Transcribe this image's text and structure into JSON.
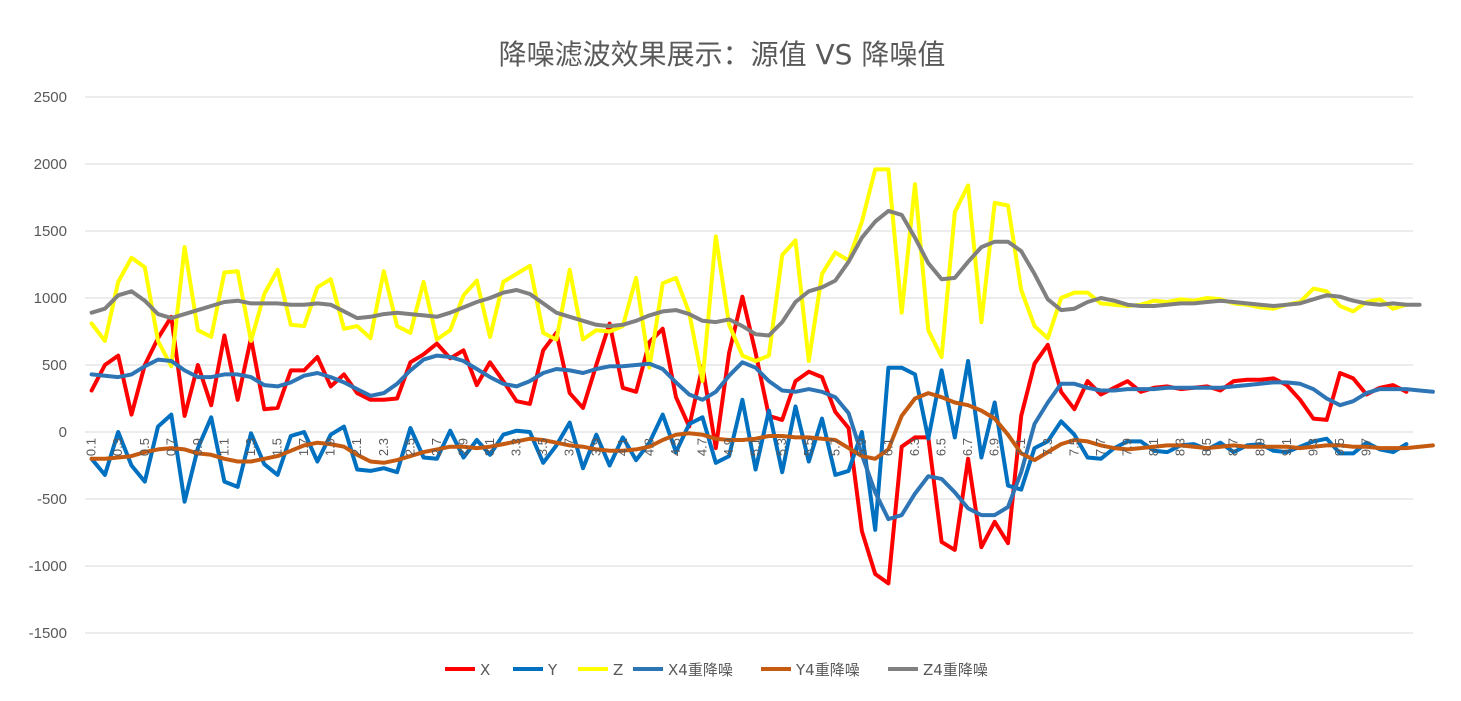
{
  "chart_data": {
    "type": "line",
    "title": "降噪滤波效果展示：源值 VS 降噪值",
    "xlabel": "",
    "ylabel": "",
    "ylim": [
      -1500,
      2500
    ],
    "yticks": [
      2500,
      2000,
      1500,
      1000,
      500,
      0,
      -500,
      -1000,
      -1500
    ],
    "x_start": 0.1,
    "x_step": 0.1,
    "x_tick_labels": [
      "0.1",
      "0.3",
      "0.5",
      "0.7",
      "0.9",
      "1.1",
      "1.3",
      "1.5",
      "1.7",
      "1.9",
      "2.1",
      "2.3",
      "2.5",
      "2.7",
      "2.9",
      "3.1",
      "3.3",
      "3.5",
      "3.7",
      "3.9",
      "4.1",
      "4.3",
      "4.5",
      "4.7",
      "4.9",
      "5.1",
      "5.3",
      "5.5",
      "5.7",
      "5.9",
      "6.1",
      "6.3",
      "6.5",
      "6.7",
      "6.9",
      "7.1",
      "7.3",
      "7.5",
      "7.7",
      "7.9",
      "8.1",
      "8.3",
      "8.5",
      "8.7",
      "8.9",
      "9.1",
      "9.3",
      "9.5",
      "9.7"
    ],
    "grid": true,
    "legend_position": "bottom",
    "series": [
      {
        "name": "X",
        "color": "#ff0000",
        "values": [
          310,
          500,
          570,
          130,
          500,
          700,
          860,
          120,
          500,
          200,
          720,
          240,
          700,
          170,
          180,
          460,
          460,
          560,
          340,
          430,
          290,
          240,
          240,
          250,
          520,
          580,
          660,
          550,
          610,
          350,
          520,
          380,
          230,
          210,
          610,
          740,
          290,
          180,
          500,
          810,
          330,
          300,
          670,
          770,
          260,
          40,
          490,
          -120,
          590,
          1010,
          590,
          120,
          90,
          380,
          450,
          410,
          150,
          30,
          -740,
          -1060,
          -1130,
          -110,
          -40,
          -40,
          -820,
          -880,
          -200,
          -860,
          -670,
          -830,
          120,
          510,
          650,
          300,
          170,
          380,
          280,
          330,
          380,
          300,
          330,
          340,
          320,
          330,
          340,
          310,
          380,
          390,
          390,
          400,
          350,
          240,
          100,
          90,
          440,
          400,
          280,
          330,
          350,
          300
        ]
      },
      {
        "name": "Y",
        "color": "#0070c0",
        "values": [
          -200,
          -320,
          0,
          -250,
          -370,
          40,
          130,
          -520,
          -120,
          110,
          -370,
          -410,
          -10,
          -240,
          -320,
          -30,
          0,
          -220,
          -20,
          40,
          -280,
          -290,
          -270,
          -300,
          30,
          -190,
          -200,
          10,
          -190,
          -60,
          -170,
          -20,
          10,
          0,
          -230,
          -100,
          70,
          -270,
          -20,
          -250,
          -40,
          -210,
          -80,
          130,
          -150,
          60,
          110,
          -230,
          -180,
          240,
          -280,
          160,
          -300,
          190,
          -220,
          100,
          -320,
          -290,
          0,
          -730,
          480,
          480,
          430,
          -50,
          460,
          -40,
          530,
          -190,
          220,
          -400,
          -430,
          -120,
          -70,
          80,
          -20,
          -190,
          -200,
          -120,
          -70,
          -70,
          -140,
          -150,
          -100,
          -90,
          -130,
          -80,
          -150,
          -100,
          -90,
          -140,
          -150,
          -110,
          -70,
          -50,
          -160,
          -160,
          -80,
          -130,
          -150,
          -90
        ]
      },
      {
        "name": "Z",
        "color": "#ffff00",
        "values": [
          810,
          680,
          1120,
          1300,
          1230,
          680,
          490,
          1380,
          760,
          710,
          1190,
          1200,
          680,
          1030,
          1210,
          800,
          790,
          1080,
          1140,
          770,
          790,
          700,
          1200,
          790,
          740,
          1120,
          690,
          760,
          1020,
          1130,
          710,
          1120,
          1180,
          1240,
          740,
          690,
          1210,
          690,
          760,
          750,
          790,
          1150,
          480,
          1110,
          1150,
          890,
          380,
          1460,
          800,
          570,
          530,
          570,
          1320,
          1430,
          530,
          1180,
          1340,
          1280,
          1570,
          1960,
          1960,
          890,
          1850,
          760,
          560,
          1640,
          1840,
          820,
          1710,
          1690,
          1060,
          790,
          700,
          1000,
          1040,
          1040,
          960,
          950,
          940,
          950,
          980,
          970,
          990,
          980,
          1000,
          990,
          960,
          950,
          930,
          920,
          950,
          970,
          1070,
          1050,
          940,
          900,
          970,
          990,
          920,
          950
        ]
      },
      {
        "name": "X4重降噪",
        "color": "#2e75b6",
        "values": [
          430,
          420,
          410,
          430,
          490,
          540,
          530,
          460,
          410,
          410,
          430,
          430,
          410,
          350,
          340,
          370,
          420,
          440,
          410,
          370,
          320,
          270,
          290,
          360,
          460,
          540,
          570,
          560,
          530,
          470,
          410,
          360,
          340,
          380,
          440,
          470,
          460,
          440,
          470,
          490,
          490,
          500,
          510,
          470,
          370,
          280,
          240,
          300,
          420,
          520,
          480,
          380,
          310,
          300,
          320,
          300,
          260,
          140,
          -170,
          -450,
          -650,
          -620,
          -460,
          -330,
          -350,
          -450,
          -570,
          -620,
          -620,
          -560,
          -300,
          60,
          220,
          360,
          360,
          330,
          310,
          310,
          320,
          320,
          320,
          330,
          330,
          330,
          330,
          330,
          340,
          350,
          360,
          370,
          370,
          360,
          320,
          250,
          200,
          230,
          290,
          320,
          320,
          320,
          310,
          300
        ]
      },
      {
        "name": "Y4重降噪",
        "color": "#c55a11",
        "values": [
          -200,
          -200,
          -190,
          -180,
          -150,
          -130,
          -120,
          -130,
          -160,
          -170,
          -200,
          -220,
          -220,
          -200,
          -180,
          -140,
          -100,
          -80,
          -90,
          -110,
          -170,
          -220,
          -230,
          -210,
          -180,
          -150,
          -130,
          -110,
          -110,
          -120,
          -110,
          -90,
          -70,
          -50,
          -60,
          -80,
          -100,
          -110,
          -130,
          -140,
          -140,
          -130,
          -110,
          -60,
          -20,
          -10,
          -20,
          -50,
          -60,
          -60,
          -50,
          -30,
          -30,
          -40,
          -40,
          -50,
          -60,
          -120,
          -180,
          -200,
          -130,
          120,
          250,
          290,
          260,
          220,
          200,
          160,
          100,
          -20,
          -160,
          -210,
          -150,
          -90,
          -60,
          -70,
          -100,
          -120,
          -130,
          -120,
          -110,
          -100,
          -100,
          -110,
          -120,
          -110,
          -100,
          -110,
          -110,
          -110,
          -110,
          -120,
          -110,
          -100,
          -100,
          -110,
          -110,
          -120,
          -120,
          -120,
          -110,
          -100
        ]
      },
      {
        "name": "Z4重降噪",
        "color": "#808080",
        "values": [
          890,
          920,
          1020,
          1050,
          980,
          880,
          850,
          880,
          910,
          940,
          970,
          980,
          960,
          960,
          960,
          950,
          950,
          960,
          950,
          900,
          850,
          860,
          880,
          890,
          880,
          870,
          860,
          890,
          930,
          970,
          1000,
          1040,
          1060,
          1030,
          960,
          890,
          860,
          830,
          800,
          790,
          800,
          830,
          870,
          900,
          910,
          880,
          830,
          820,
          840,
          790,
          730,
          720,
          820,
          970,
          1050,
          1080,
          1130,
          1270,
          1450,
          1570,
          1650,
          1620,
          1450,
          1260,
          1140,
          1150,
          1270,
          1380,
          1420,
          1420,
          1350,
          1180,
          990,
          910,
          920,
          970,
          1000,
          980,
          950,
          940,
          940,
          950,
          960,
          960,
          970,
          980,
          970,
          960,
          950,
          940,
          950,
          960,
          990,
          1020,
          1010,
          980,
          960,
          950,
          960,
          950,
          950
        ]
      }
    ]
  }
}
